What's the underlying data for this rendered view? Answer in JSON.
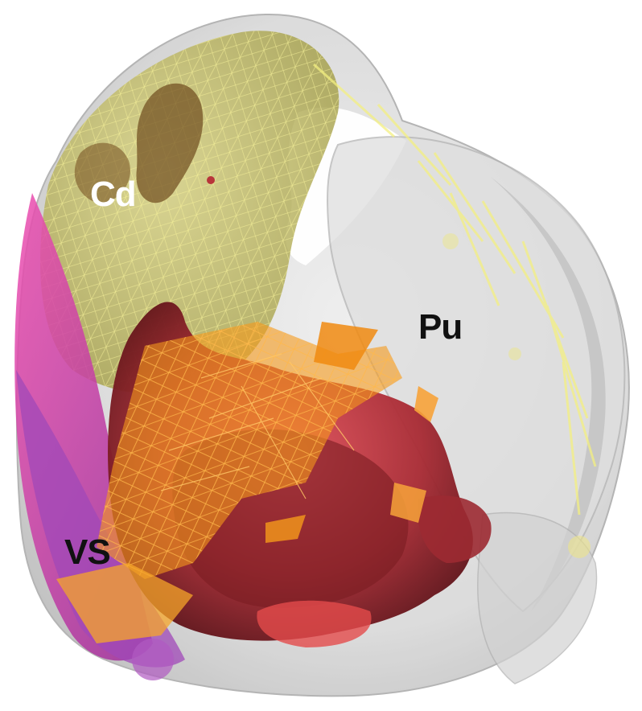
{
  "labels": {
    "caudate": "Cd",
    "putamen": "Pu",
    "ventral_striatum": "VS"
  },
  "colors": {
    "background": "#ffffff",
    "shell": "#c9c9c9",
    "shell_edge": "#9a9a9a",
    "yellow_mesh": "#f2ee8a",
    "yellow_fill": "#c9c25a",
    "orange": "#f59a1a",
    "red": "#b8353a",
    "dark_red": "#7a1c22",
    "magenta": "#d8369a",
    "purple": "#a048b8",
    "brown": "#6e4a1c",
    "label_light": "#ffffff",
    "label_dark": "#111111"
  }
}
